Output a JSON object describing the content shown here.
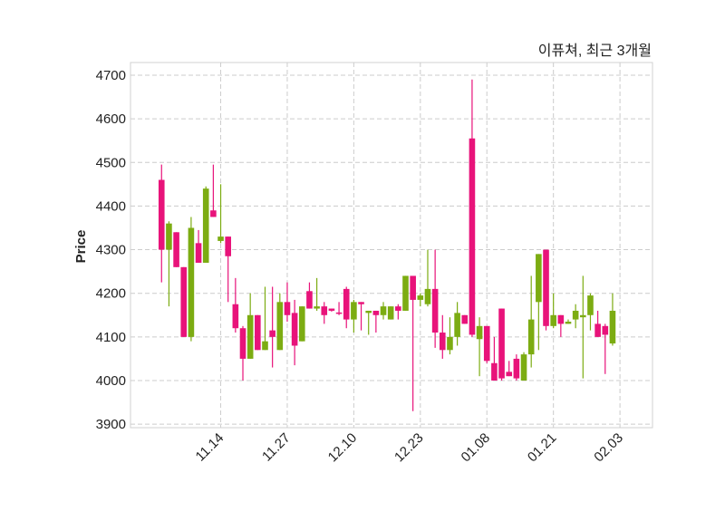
{
  "chart_data": {
    "type": "candlestick",
    "title": "이퓨쳐, 최근 3개월",
    "xlabel": "",
    "ylabel": "Price",
    "ylim": [
      3892,
      4729
    ],
    "xlim": [
      -4.2,
      66.4
    ],
    "yticks": [
      3900,
      4000,
      4100,
      4200,
      4300,
      4400,
      4500,
      4600,
      4700
    ],
    "xticks": [
      {
        "label": "11.14",
        "index": 8
      },
      {
        "label": "11.27",
        "index": 17
      },
      {
        "label": "12.10",
        "index": 26
      },
      {
        "label": "12.23",
        "index": 35
      },
      {
        "label": "01.08",
        "index": 44
      },
      {
        "label": "01.21",
        "index": 53
      },
      {
        "label": "02.03",
        "index": 62
      }
    ],
    "grid": true,
    "colors": {
      "up": "#e8137a",
      "down": "#7cac12",
      "grid": "#cccccc",
      "frame": "#d0d0d0"
    },
    "ohlc": [
      [
        4300,
        4495,
        4225,
        4460
      ],
      [
        4360,
        4365,
        4170,
        4300
      ],
      [
        4260,
        4340,
        4260,
        4340
      ],
      [
        4100,
        4260,
        4100,
        4260
      ],
      [
        4350,
        4375,
        4090,
        4100
      ],
      [
        4270,
        4345,
        4270,
        4315
      ],
      [
        4440,
        4445,
        4270,
        4270
      ],
      [
        4375,
        4495,
        4375,
        4390
      ],
      [
        4330,
        4450,
        4315,
        4320
      ],
      [
        4285,
        4330,
        4180,
        4330
      ],
      [
        4120,
        4235,
        4110,
        4175
      ],
      [
        4050,
        4125,
        4000,
        4120
      ],
      [
        4150,
        4200,
        4050,
        4050
      ],
      [
        4070,
        4150,
        4070,
        4150
      ],
      [
        4090,
        4215,
        4070,
        4070
      ],
      [
        4100,
        4215,
        4030,
        4115
      ],
      [
        4180,
        4200,
        4070,
        4070
      ],
      [
        4150,
        4225,
        4135,
        4180
      ],
      [
        4080,
        4185,
        4035,
        4155
      ],
      [
        4170,
        4170,
        4090,
        4090
      ],
      [
        4165,
        4225,
        4165,
        4205
      ],
      [
        4170,
        4235,
        4160,
        4165
      ],
      [
        4150,
        4180,
        4130,
        4170
      ],
      [
        4160,
        4165,
        4158,
        4165
      ],
      [
        4153,
        4180,
        4150,
        4156
      ],
      [
        4140,
        4215,
        4120,
        4210
      ],
      [
        4180,
        4185,
        4110,
        4140
      ],
      [
        4175,
        4180,
        4115,
        4180
      ],
      [
        4160,
        4160,
        4105,
        4155
      ],
      [
        4150,
        4160,
        4110,
        4160
      ],
      [
        4170,
        4180,
        4140,
        4150
      ],
      [
        4170,
        4170,
        4140,
        4140
      ],
      [
        4160,
        4175,
        4140,
        4170
      ],
      [
        4240,
        4240,
        4160,
        4160
      ],
      [
        4185,
        4240,
        3930,
        4240
      ],
      [
        4195,
        4200,
        4170,
        4185
      ],
      [
        4210,
        4300,
        4170,
        4175
      ],
      [
        4110,
        4300,
        4075,
        4210
      ],
      [
        4070,
        4150,
        4050,
        4110
      ],
      [
        4100,
        4145,
        4060,
        4070
      ],
      [
        4155,
        4180,
        4080,
        4100
      ],
      [
        4130,
        4150,
        4130,
        4150
      ],
      [
        4105,
        4690,
        4100,
        4555
      ],
      [
        4125,
        4145,
        4010,
        4095
      ],
      [
        4045,
        4125,
        4040,
        4125
      ],
      [
        4000,
        4100,
        4000,
        4040
      ],
      [
        4005,
        4165,
        4000,
        4165
      ],
      [
        4010,
        4045,
        4010,
        4020
      ],
      [
        4005,
        4060,
        4000,
        4050
      ],
      [
        4060,
        4065,
        4000,
        4000
      ],
      [
        4140,
        4240,
        4030,
        4060
      ],
      [
        4290,
        4290,
        4070,
        4180
      ],
      [
        4125,
        4300,
        4115,
        4300
      ],
      [
        4150,
        4200,
        4120,
        4125
      ],
      [
        4130,
        4150,
        4100,
        4150
      ],
      [
        4135,
        4140,
        4130,
        4130
      ],
      [
        4160,
        4175,
        4120,
        4140
      ],
      [
        4150,
        4240,
        4005,
        4145
      ],
      [
        4195,
        4200,
        4115,
        4150
      ],
      [
        4100,
        4160,
        4100,
        4130
      ],
      [
        4105,
        4130,
        4015,
        4125
      ],
      [
        4160,
        4200,
        4080,
        4085
      ]
    ]
  }
}
